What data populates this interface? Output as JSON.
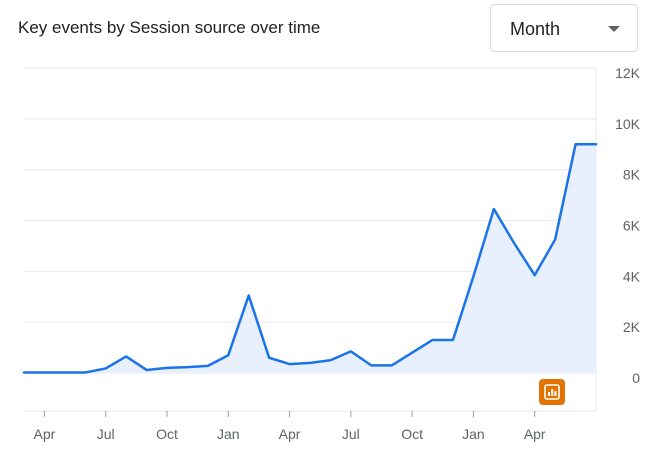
{
  "card": {
    "title": "Key events by Session source over time"
  },
  "granularity": {
    "selected": "Month"
  },
  "icons": {
    "dropdown": "chevron-down-icon",
    "insight_badge": "bar-chart-icon"
  },
  "colors": {
    "line": "#1a73e8",
    "area": "#e8f0fe",
    "badge": "#e37400",
    "grid": "#e8eaed"
  },
  "chart_data": {
    "type": "area",
    "title": "Key events by Session source over time",
    "xlabel": "",
    "ylabel": "",
    "y_axis_position": "right",
    "ylim": [
      0,
      12000
    ],
    "yticks": [
      0,
      2000,
      4000,
      6000,
      8000,
      10000,
      12000
    ],
    "ytick_labels": [
      "0",
      "2K",
      "4K",
      "6K",
      "8K",
      "10K",
      "12K"
    ],
    "x_tick_labels": [
      "Apr",
      "Jul",
      "Oct",
      "Jan",
      "Apr",
      "Jul",
      "Oct",
      "Jan",
      "Apr"
    ],
    "x_tick_index": [
      1,
      4,
      7,
      10,
      13,
      16,
      19,
      22,
      25
    ],
    "grid": true,
    "legend": "none",
    "series": [
      {
        "values": [
          20,
          20,
          20,
          20,
          180,
          650,
          120,
          200,
          230,
          280,
          700,
          3050,
          600,
          350,
          400,
          500,
          850,
          300,
          300,
          800,
          1300,
          1300,
          3800,
          6450,
          5100,
          3850,
          5250,
          9000,
          9000
        ]
      }
    ]
  }
}
